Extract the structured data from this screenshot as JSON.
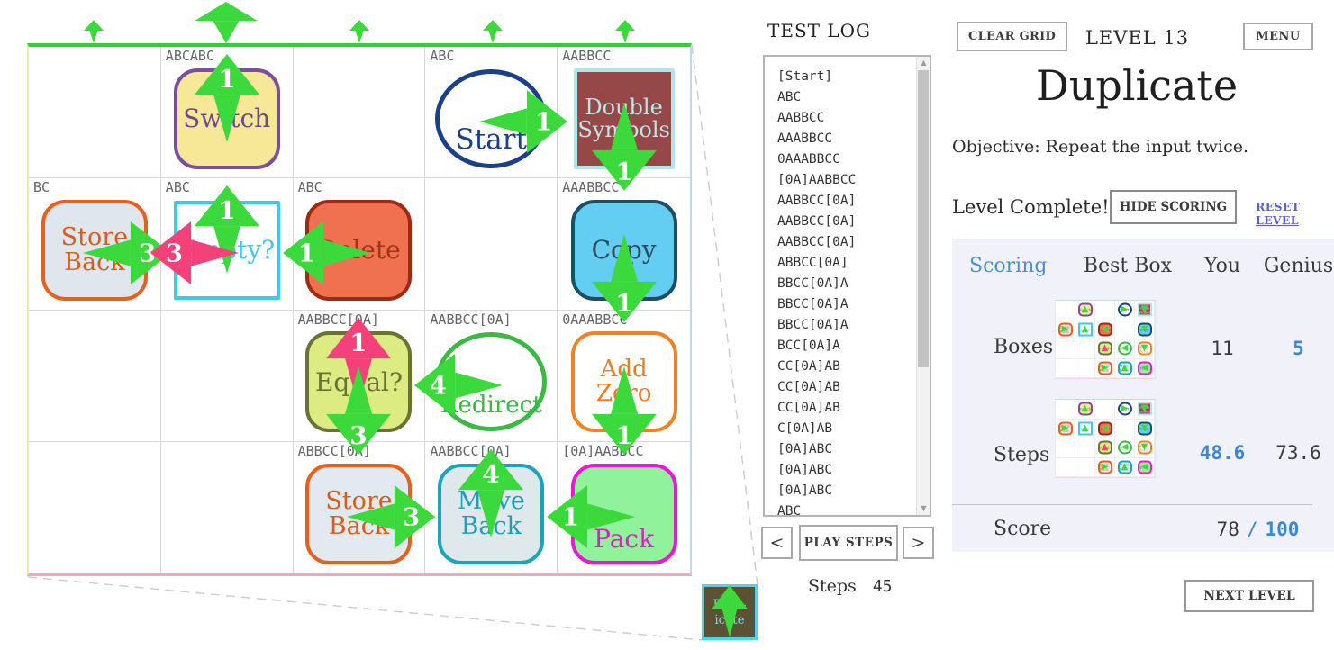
{
  "colors": {
    "green_arrow": "#3cd93c",
    "pink_arrow": "#f4417a",
    "grid_top": "#2fd32f",
    "accent_blue": "#3a87d8",
    "link": "#5f5fd3"
  },
  "grid": {
    "top_arrows": [
      {
        "size": "small"
      },
      {
        "size": "big"
      },
      {
        "size": "small"
      },
      {
        "size": "small"
      },
      {
        "size": "small"
      }
    ],
    "cells": [
      {
        "row": 1,
        "col": 2,
        "label": "ABCABC",
        "box": {
          "name": "Switch",
          "lines": [
            "Switch"
          ],
          "shape": "rounded",
          "fill": "#f7e897",
          "border": "#7b4fa0",
          "text_color": "#6b479a",
          "font": 28
        },
        "arrows": [
          {
            "dir": "up",
            "num": "1",
            "color": "green"
          }
        ]
      },
      {
        "row": 1,
        "col": 4,
        "label": "ABC",
        "box": {
          "name": "Start",
          "lines": [
            "Start"
          ],
          "shape": "circle",
          "fill": "#ffffff",
          "border": "#1d3f8a",
          "text_color": "#1d3f8a",
          "font": 31,
          "text_low": true
        },
        "arrows": [
          {
            "dir": "right",
            "num": "1",
            "color": "green"
          }
        ]
      },
      {
        "row": 1,
        "col": 5,
        "label": "AABBCC",
        "box": {
          "name": "Double Symbols",
          "lines": [
            "Double",
            "Symbols"
          ],
          "shape": "square",
          "fill": "#964848",
          "border": "#aee8ee",
          "text_color": "#bce6e6",
          "font": 24
        },
        "arrows": [
          {
            "dir": "down",
            "num": "1",
            "color": "green"
          }
        ]
      },
      {
        "row": 2,
        "col": 1,
        "label": "BC",
        "box": {
          "name": "Store Back",
          "lines": [
            "Store",
            "Back"
          ],
          "shape": "rounded",
          "fill": "#dfe6ee",
          "border": "#e5611d",
          "text_color": "#d95c17",
          "font": 27
        },
        "arrows": [
          {
            "dir": "right",
            "num": "3",
            "color": "green"
          }
        ]
      },
      {
        "row": 2,
        "col": 2,
        "label": "ABC",
        "box": {
          "name": "Empty?",
          "lines": [
            "Empty?"
          ],
          "shape": "sqthin",
          "fill": "#ffffff",
          "border": "#3ec9e9",
          "text_color": "#44c6e8",
          "font": 28
        },
        "arrows": [
          {
            "dir": "up",
            "num": "1",
            "color": "green"
          },
          {
            "dir": "left",
            "num": "3",
            "color": "pink"
          }
        ]
      },
      {
        "row": 2,
        "col": 3,
        "label": "ABC",
        "box": {
          "name": "Delete",
          "lines": [
            "Delete"
          ],
          "shape": "rounded",
          "fill": "#f0714f",
          "border": "#9e2a14",
          "text_color": "#a33318",
          "font": 28
        },
        "arrows": [
          {
            "dir": "left",
            "num": "1",
            "color": "green"
          }
        ]
      },
      {
        "row": 2,
        "col": 5,
        "label": "AAABBCC",
        "box": {
          "name": "Copy",
          "lines": [
            "Copy"
          ],
          "shape": "rounded",
          "fill": "#63cdf2",
          "border": "#1d4f62",
          "text_color": "#2d4a5e",
          "font": 28
        },
        "arrows": [
          {
            "dir": "down",
            "num": "1",
            "color": "green"
          }
        ]
      },
      {
        "row": 3,
        "col": 3,
        "label": "AABBCC[0A]",
        "box": {
          "name": "Equal?",
          "lines": [
            "Equal?"
          ],
          "shape": "rounded",
          "fill": "#dcec83",
          "border": "#6c7134",
          "text_color": "#6c7134",
          "font": 28
        },
        "arrows": [
          {
            "dir": "up",
            "num": "1",
            "color": "pink"
          },
          {
            "dir": "down",
            "num": "3",
            "color": "green"
          }
        ]
      },
      {
        "row": 3,
        "col": 4,
        "label": "AABBCC[0A]",
        "box": {
          "name": "Redirect",
          "lines": [
            "Redirect"
          ],
          "shape": "circle",
          "fill": "#ffffff",
          "border": "#3cb845",
          "text_color": "#3cb845",
          "font": 26,
          "text_low": true
        },
        "arrows": [
          {
            "dir": "left",
            "num": "4",
            "color": "green"
          }
        ]
      },
      {
        "row": 3,
        "col": 5,
        "label": "0AAABBCC",
        "box": {
          "name": "Add Zero",
          "lines": [
            "Add Zero"
          ],
          "shape": "rounded",
          "fill": "#ffffff",
          "border": "#ef8323",
          "text_color": "#ee7b1e",
          "font": 26
        },
        "arrows": [
          {
            "dir": "down",
            "num": "1",
            "color": "green"
          }
        ]
      },
      {
        "row": 4,
        "col": 3,
        "label": "ABBCC[0A]",
        "box": {
          "name": "Store Back",
          "lines": [
            "Store",
            "Back"
          ],
          "shape": "rounded",
          "fill": "#e3e9f0",
          "border": "#e5611d",
          "text_color": "#d95c17",
          "font": 27
        },
        "arrows": [
          {
            "dir": "right",
            "num": "3",
            "color": "green"
          }
        ]
      },
      {
        "row": 4,
        "col": 4,
        "label": "AABBCC[0A]",
        "box": {
          "name": "Move Back",
          "lines": [
            "Move",
            "Back"
          ],
          "shape": "rounded",
          "fill": "#dfe8eb",
          "border": "#1ba4bc",
          "text_color": "#1b9fba",
          "font": 27
        },
        "arrows": [
          {
            "dir": "up",
            "num": "4",
            "color": "green"
          }
        ]
      },
      {
        "row": 4,
        "col": 5,
        "label": "[0A]AABBCC",
        "box": {
          "name": "Pack",
          "lines": [
            "Pack"
          ],
          "shape": "rounded",
          "fill": "#90f29a",
          "border": "#ee16d4",
          "text_color": "#dd20c2",
          "font": 28,
          "text_low": true
        },
        "arrows": [
          {
            "dir": "left",
            "num": "1",
            "color": "green"
          }
        ]
      }
    ]
  },
  "inset": {
    "line1": "Dupl-",
    "line2": "icate"
  },
  "test_log": {
    "title": "TEST LOG",
    "entries": [
      "[Start]",
      "ABC",
      "AABBCC",
      "AAABBCC",
      "0AAABBCC",
      "[0A]AABBCC",
      "AABBCC[0A]",
      "AABBCC[0A]",
      "AABBCC[0A]",
      "ABBCC[0A]",
      "BBCC[0A]A",
      "BBCC[0A]A",
      "BBCC[0A]A",
      "BCC[0A]A",
      "CC[0A]AB",
      "CC[0A]AB",
      "CC[0A]AB",
      "C[0A]AB",
      "[0A]ABC",
      "[0A]ABC",
      "[0A]ABC",
      "ABC"
    ]
  },
  "controls": {
    "prev": "<",
    "play": "PLAY STEPS",
    "next": ">",
    "steps_label": "Steps",
    "steps_value": "45"
  },
  "header": {
    "clear_grid": "CLEAR GRID",
    "level": "LEVEL 13",
    "menu": "MENU"
  },
  "level": {
    "title": "Duplicate",
    "objective": "Objective: Repeat the input twice.",
    "complete": "Level Complete!",
    "hide_scoring": "HIDE SCORING",
    "reset_level": "RESET LEVEL"
  },
  "scoring": {
    "headers": {
      "scoring": "Scoring",
      "best_box": "Best Box",
      "you": "You",
      "genius": "Genius"
    },
    "rows": [
      {
        "label": "Boxes",
        "you": "11",
        "genius": "5",
        "you_blue": false,
        "genius_blue": true
      },
      {
        "label": "Steps",
        "you": "48.6",
        "genius": "73.6",
        "you_blue": true,
        "genius_blue": false
      }
    ],
    "score": {
      "label": "Score",
      "you": "78",
      "sep": "/",
      "max": "100"
    }
  },
  "next_level": "NEXT LEVEL"
}
